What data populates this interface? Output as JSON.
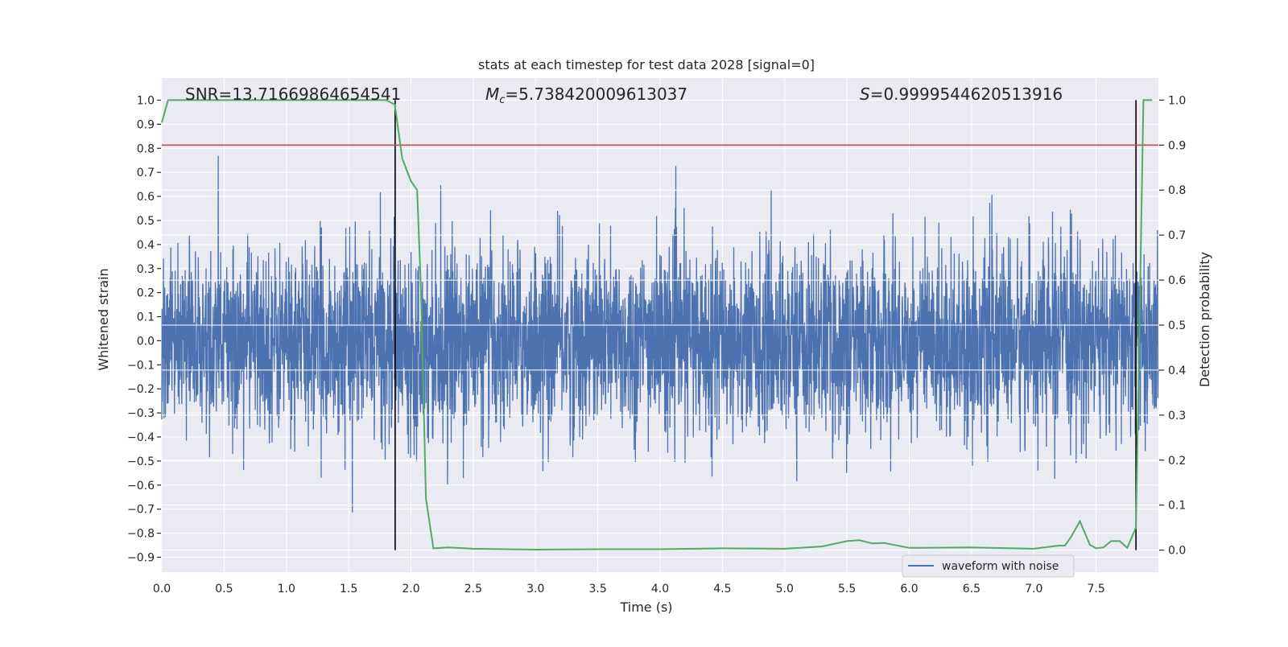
{
  "chart_data": {
    "type": "line",
    "title": "stats at each timestep for test data 2028 [signal=0]",
    "xlabel": "Time (s)",
    "ylabel": "Whitened strain",
    "ylabel_right": "Detection probability",
    "xlim": [
      0,
      8.0
    ],
    "ylim": [
      -0.962,
      1.092
    ],
    "ylim_right": [
      -0.049,
      1.049
    ],
    "xticks": [
      "0.0",
      "0.5",
      "1.0",
      "1.5",
      "2.0",
      "2.5",
      "3.0",
      "3.5",
      "4.0",
      "4.5",
      "5.0",
      "5.5",
      "6.0",
      "6.5",
      "7.0",
      "7.5"
    ],
    "xtick_values": [
      0,
      0.5,
      1,
      1.5,
      2,
      2.5,
      3,
      3.5,
      4,
      4.5,
      5,
      5.5,
      6,
      6.5,
      7,
      7.5
    ],
    "yticks": [
      "1.0",
      "0.9",
      "0.8",
      "0.7",
      "0.6",
      "0.5",
      "0.4",
      "0.3",
      "0.2",
      "0.1",
      "0.0",
      "−0.1",
      "−0.2",
      "−0.3",
      "−0.4",
      "−0.5",
      "−0.6",
      "−0.7",
      "−0.8",
      "−0.9"
    ],
    "ytick_values": [
      1.0,
      0.9,
      0.8,
      0.7,
      0.6,
      0.5,
      0.4,
      0.3,
      0.2,
      0.1,
      0.0,
      -0.1,
      -0.2,
      -0.3,
      -0.4,
      -0.5,
      -0.6,
      -0.7,
      -0.8,
      -0.9
    ],
    "yticks_right": [
      "1.0",
      "0.9",
      "0.8",
      "0.7",
      "0.6",
      "0.5",
      "0.4",
      "0.3",
      "0.2",
      "0.1",
      "0.0"
    ],
    "ytick_right_values": [
      1.0,
      0.9,
      0.8,
      0.7,
      0.6,
      0.5,
      0.4,
      0.3,
      0.2,
      0.1,
      0.0
    ],
    "grid": true,
    "annotations": {
      "snr": "SNR=13.71669864654541",
      "mc_symbol": "M",
      "mc_sub": "c",
      "mc_value": "=5.738420009613037",
      "s_symbol": "S",
      "s_value": "=0.9999544620513916"
    },
    "legend": {
      "placement": "bottom-center",
      "entries": [
        "waveform with noise"
      ]
    },
    "series": [
      {
        "name": "waveform with noise",
        "axis": "left",
        "color": "#4C72B0",
        "kind": "noise",
        "n_samples": 4096,
        "noise_std": 0.19,
        "t_range": [
          0,
          8.0
        ]
      },
      {
        "name": "detection probability",
        "axis": "right",
        "color": "#55A868",
        "x": [
          0,
          0.05,
          1.8,
          1.87,
          1.93,
          2.0,
          2.05,
          2.08,
          2.12,
          2.18,
          2.3,
          2.5,
          3.0,
          3.5,
          4.0,
          4.5,
          5.0,
          5.3,
          5.5,
          5.6,
          5.7,
          5.8,
          6.0,
          6.5,
          7.0,
          7.2,
          7.25,
          7.3,
          7.37,
          7.45,
          7.5,
          7.56,
          7.62,
          7.69,
          7.75,
          7.82,
          7.88,
          7.95
        ],
        "y": [
          0.95,
          1.0,
          1.0,
          0.99,
          0.87,
          0.82,
          0.8,
          0.58,
          0.115,
          0.004,
          0.006,
          0.003,
          0.001,
          0.002,
          0.002,
          0.004,
          0.003,
          0.008,
          0.02,
          0.022,
          0.015,
          0.016,
          0.005,
          0.006,
          0.003,
          0.01,
          0.01,
          0.03,
          0.064,
          0.012,
          0.004,
          0.006,
          0.02,
          0.02,
          0.005,
          0.05,
          1.0,
          1.0
        ]
      }
    ],
    "threshold": {
      "axis": "right",
      "value": 0.9,
      "color": "#C44E52"
    },
    "vlines": {
      "axis": "right",
      "x": [
        1.873,
        7.82
      ],
      "y_range": [
        0,
        1.0
      ],
      "color": "#000000"
    }
  }
}
